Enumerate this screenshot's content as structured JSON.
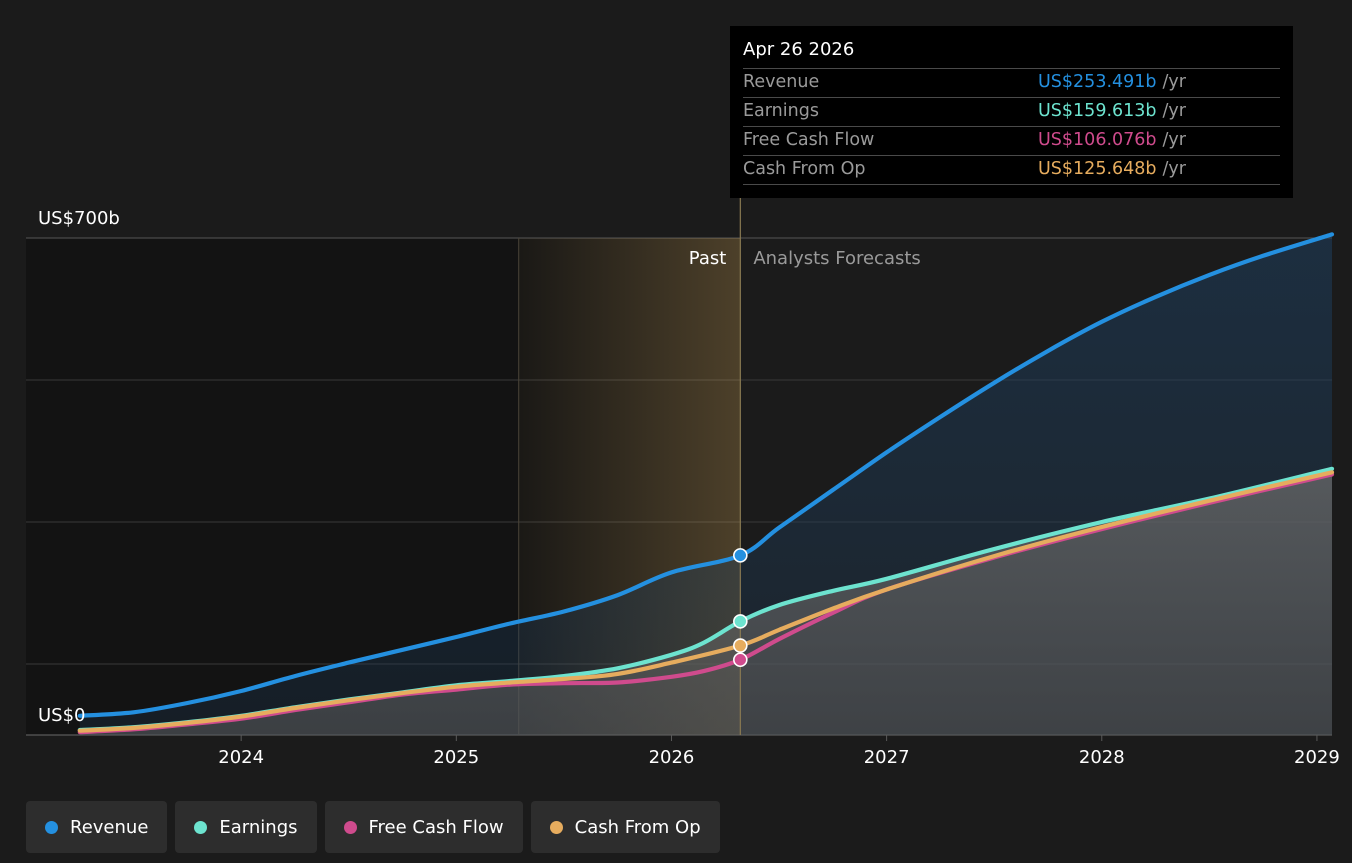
{
  "colors": {
    "revenue": "#2490e0",
    "earnings": "#6de3cf",
    "free_cash_flow": "#cf4b8d",
    "cash_from_op": "#e6ac5e",
    "background": "#1b1b1b"
  },
  "tooltip": {
    "date": "Apr 26 2026",
    "unit": "/yr",
    "rows": [
      {
        "label": "Revenue",
        "value": "US$253.491b",
        "unit": "/yr"
      },
      {
        "label": "Earnings",
        "value": "US$159.613b",
        "unit": "/yr"
      },
      {
        "label": "Free Cash Flow",
        "value": "US$106.076b",
        "unit": "/yr"
      },
      {
        "label": "Cash From Op",
        "value": "US$125.648b",
        "unit": "/yr"
      }
    ]
  },
  "legend": [
    {
      "label": "Revenue",
      "icon": "revenue-dot-icon"
    },
    {
      "label": "Earnings",
      "icon": "earnings-dot-icon"
    },
    {
      "label": "Free Cash Flow",
      "icon": "free-cash-flow-dot-icon"
    },
    {
      "label": "Cash From Op",
      "icon": "cash-from-op-dot-icon"
    }
  ],
  "chart_data": {
    "type": "line",
    "y_top_label": "US$700b",
    "y_bottom_label": "US$0",
    "ylim": [
      0,
      700
    ],
    "xlim": [
      2023.0,
      2029.07
    ],
    "x_ticks": [
      2024,
      2025,
      2026,
      2027,
      2028,
      2029
    ],
    "x_tick_labels": [
      "2024",
      "2025",
      "2026",
      "2027",
      "2028",
      "2029"
    ],
    "past_label": "Past",
    "forecast_label": "Analysts Forecasts",
    "past_region_start": 2025.29,
    "divider_x": 2026.32,
    "grid": true,
    "legend_position": "bottom-left",
    "series": [
      {
        "name": "Revenue",
        "key": "revenue",
        "x": [
          2023.25,
          2023.5,
          2023.75,
          2024.0,
          2024.25,
          2024.5,
          2024.75,
          2025.0,
          2025.25,
          2025.5,
          2025.75,
          2026.0,
          2026.32,
          2026.5,
          2026.75,
          2027.0,
          2027.25,
          2027.5,
          2027.75,
          2028.0,
          2028.25,
          2028.5,
          2028.75,
          2029.07
        ],
        "y": [
          27,
          32,
          45,
          62,
          83,
          102,
          120,
          138,
          157,
          174,
          197,
          229,
          253,
          292,
          345,
          398,
          448,
          496,
          541,
          582,
          617,
          648,
          675,
          705
        ]
      },
      {
        "name": "Earnings",
        "key": "earnings",
        "x": [
          2023.25,
          2023.5,
          2023.75,
          2024.0,
          2024.25,
          2024.5,
          2024.75,
          2025.0,
          2025.25,
          2025.5,
          2025.75,
          2026.0,
          2026.15,
          2026.32,
          2026.5,
          2026.75,
          2027.0,
          2027.5,
          2028.0,
          2028.5,
          2029.07
        ],
        "y": [
          7,
          11,
          18,
          27,
          39,
          50,
          60,
          70,
          76,
          83,
          94,
          113,
          130,
          160,
          183,
          203,
          220,
          262,
          300,
          333,
          375
        ]
      },
      {
        "name": "Free Cash Flow",
        "key": "free_cash_flow",
        "x": [
          2023.25,
          2023.5,
          2023.75,
          2024.0,
          2024.25,
          2024.5,
          2024.75,
          2025.0,
          2025.25,
          2025.5,
          2025.75,
          2026.0,
          2026.15,
          2026.32,
          2026.5,
          2026.75,
          2027.0,
          2027.5,
          2028.0,
          2028.5,
          2029.07
        ],
        "y": [
          4,
          8,
          15,
          23,
          35,
          46,
          57,
          64,
          71,
          73,
          74,
          82,
          90,
          106,
          135,
          172,
          205,
          250,
          290,
          327,
          367
        ]
      },
      {
        "name": "Cash From Op",
        "key": "cash_from_op",
        "x": [
          2023.25,
          2023.5,
          2023.75,
          2024.0,
          2024.25,
          2024.5,
          2024.75,
          2025.0,
          2025.25,
          2025.5,
          2025.75,
          2026.0,
          2026.32,
          2026.5,
          2026.75,
          2027.0,
          2027.5,
          2028.0,
          2028.5,
          2029.07
        ],
        "y": [
          6,
          10,
          17,
          26,
          38,
          49,
          59,
          68,
          74,
          79,
          86,
          102,
          126,
          148,
          178,
          205,
          252,
          293,
          330,
          370
        ]
      }
    ]
  }
}
